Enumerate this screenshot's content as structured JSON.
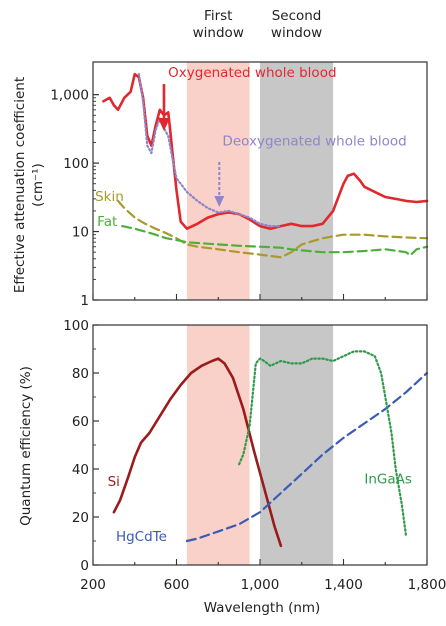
{
  "windows": [
    {
      "label_lines": [
        "First",
        "window"
      ],
      "range": [
        650,
        950
      ],
      "color": "#f9c9c0"
    },
    {
      "label_lines": [
        "Second",
        "window"
      ],
      "range": [
        1000,
        1350
      ],
      "color": "#bdbdbd"
    }
  ],
  "colors": {
    "oxy": "#e0282e",
    "deoxy": "#8f86c8",
    "skin": "#a89a2c",
    "fat": "#4fae3a",
    "si": "#9b1b1b",
    "hgcdte": "#3a5bb6",
    "ingaas": "#2f9a4a",
    "axis": "#333333"
  },
  "xlabel": "Wavelength (nm)",
  "x_tick_labels": [
    "200",
    "600",
    "1,000",
    "1,400",
    "1,800"
  ],
  "chart_data": [
    {
      "type": "line",
      "ylabel_lines": [
        "Effective attenuation coefficient",
        "(cm⁻¹)"
      ],
      "yscale": "log",
      "xlim": [
        200,
        1800
      ],
      "ylim": [
        1,
        3000
      ],
      "y_tick_labels": [
        "1,000",
        "100",
        "10",
        "1"
      ],
      "y_ticks": [
        1000,
        100,
        10,
        1
      ],
      "series": [
        {
          "name": "Oxygenated whole blood",
          "style": "solid",
          "x": [
            250,
            280,
            300,
            320,
            350,
            380,
            400,
            420,
            440,
            460,
            480,
            500,
            520,
            540,
            560,
            570,
            580,
            600,
            620,
            650,
            700,
            750,
            800,
            850,
            900,
            950,
            1000,
            1050,
            1100,
            1150,
            1200,
            1250,
            1300,
            1350,
            1400,
            1420,
            1450,
            1480,
            1500,
            1550,
            1600,
            1650,
            1700,
            1750,
            1800
          ],
          "y": [
            800,
            900,
            700,
            600,
            900,
            1100,
            2000,
            1800,
            900,
            250,
            180,
            350,
            600,
            500,
            550,
            300,
            150,
            40,
            14,
            11,
            13,
            16,
            18,
            19,
            18,
            15,
            12,
            11,
            12,
            13,
            12,
            12,
            13,
            20,
            50,
            65,
            70,
            55,
            45,
            38,
            32,
            30,
            28,
            27,
            28
          ]
        },
        {
          "name": "Deoxygenated whole blood",
          "style": "dotted",
          "x": [
            420,
            440,
            460,
            480,
            500,
            520,
            540,
            560,
            580,
            600,
            650,
            700,
            750,
            800,
            850,
            900,
            950,
            1000,
            1050,
            1100
          ],
          "y": [
            2000,
            800,
            180,
            140,
            300,
            450,
            320,
            250,
            120,
            60,
            38,
            28,
            22,
            19,
            20,
            18,
            16,
            13,
            12,
            12
          ]
        },
        {
          "name": "Skin",
          "style": "dashed",
          "x": [
            320,
            350,
            400,
            450,
            500,
            550,
            600,
            650,
            700,
            800,
            900,
            1000,
            1050,
            1100,
            1150,
            1200,
            1300,
            1350,
            1400,
            1500,
            1600,
            1700,
            1800
          ],
          "y": [
            28,
            22,
            16,
            13,
            11,
            9.5,
            8,
            6.5,
            6,
            5.5,
            5,
            4.6,
            4.4,
            4.2,
            5,
            6.5,
            8,
            8.5,
            9,
            9,
            8.5,
            8.2,
            8
          ]
        },
        {
          "name": "Fat",
          "style": "dashed",
          "x": [
            340,
            400,
            450,
            500,
            550,
            600,
            650,
            700,
            800,
            900,
            1000,
            1100,
            1150,
            1200,
            1300,
            1400,
            1500,
            1600,
            1700,
            1720,
            1750,
            1800
          ],
          "y": [
            12,
            11,
            10,
            9,
            8,
            7.5,
            7,
            6.8,
            6.5,
            6.2,
            6,
            5.8,
            5.5,
            5.3,
            5,
            5,
            5.2,
            5.5,
            5,
            4.5,
            5.5,
            6
          ]
        }
      ],
      "annotations": [
        {
          "text": "Oxygenated whole blood",
          "x": 560,
          "y": 1800
        },
        {
          "text": "Deoxygenated whole blood",
          "x": 820,
          "y": 180
        },
        {
          "text": "Skin",
          "x": 210,
          "y": 28
        },
        {
          "text": "Fat",
          "x": 220,
          "y": 12
        }
      ]
    },
    {
      "type": "line",
      "ylabel_lines": [
        "Quantum efficiency (%)"
      ],
      "xlim": [
        200,
        1800
      ],
      "ylim": [
        0,
        100
      ],
      "y_tick_labels": [
        "100",
        "80",
        "60",
        "40",
        "20",
        "0"
      ],
      "y_ticks": [
        100,
        80,
        60,
        40,
        20,
        0
      ],
      "series": [
        {
          "name": "Si",
          "style": "solid",
          "x": [
            300,
            330,
            370,
            400,
            430,
            470,
            520,
            570,
            620,
            670,
            720,
            770,
            800,
            830,
            870,
            920,
            970,
            1020,
            1070,
            1100
          ],
          "y": [
            22,
            27,
            37,
            45,
            51,
            55,
            62,
            69,
            75,
            80,
            83,
            85,
            86,
            84,
            78,
            65,
            48,
            32,
            16,
            8
          ]
        },
        {
          "name": "HgCdTe",
          "style": "dashed",
          "x": [
            650,
            700,
            800,
            900,
            1000,
            1100,
            1200,
            1300,
            1400,
            1500,
            1600,
            1700,
            1800
          ],
          "y": [
            10,
            11,
            14,
            17,
            22,
            30,
            38,
            46,
            53,
            59,
            65,
            72,
            80
          ]
        },
        {
          "name": "InGaAs",
          "style": "dotted",
          "x": [
            900,
            920,
            950,
            980,
            1000,
            1020,
            1050,
            1100,
            1150,
            1200,
            1250,
            1300,
            1350,
            1400,
            1450,
            1500,
            1550,
            1580,
            1600,
            1630,
            1650,
            1680,
            1700
          ],
          "y": [
            42,
            46,
            58,
            84,
            86,
            85,
            83,
            85,
            84,
            84,
            86,
            86,
            85,
            87,
            89,
            89,
            87,
            80,
            70,
            55,
            40,
            25,
            12
          ]
        }
      ],
      "annotations": [
        {
          "text": "Si",
          "x": 270,
          "y": 33
        },
        {
          "text": "HgCdTe",
          "x": 310,
          "y": 10
        },
        {
          "text": "InGaAs",
          "x": 1500,
          "y": 34
        }
      ]
    }
  ]
}
